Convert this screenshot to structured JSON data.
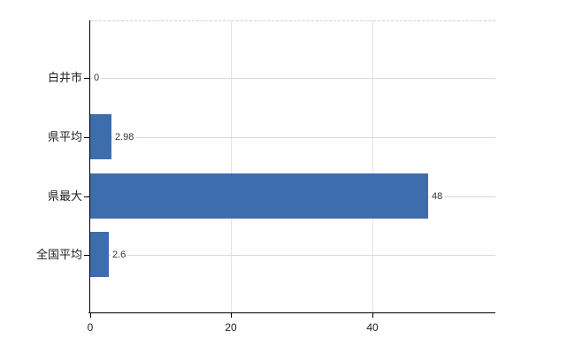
{
  "chart_data": {
    "type": "bar",
    "orientation": "horizontal",
    "title": "",
    "categories": [
      "白井市",
      "県平均",
      "県最大",
      "全国平均"
    ],
    "values": [
      0,
      2.98,
      48,
      2.6
    ],
    "value_labels": [
      "0",
      "2.98",
      "48",
      "2.6"
    ],
    "xlabel": "",
    "ylabel": "",
    "xlim": [
      0,
      57.5
    ],
    "x_ticks": [
      0,
      20,
      40
    ],
    "x_tick_labels": [
      "0",
      "20",
      "40"
    ],
    "grid": true,
    "legend": false,
    "bar_color": "#3E6DAE",
    "gridline_color": "#D9D9D9",
    "axis_color": "#000000",
    "label_color": "#333333"
  }
}
